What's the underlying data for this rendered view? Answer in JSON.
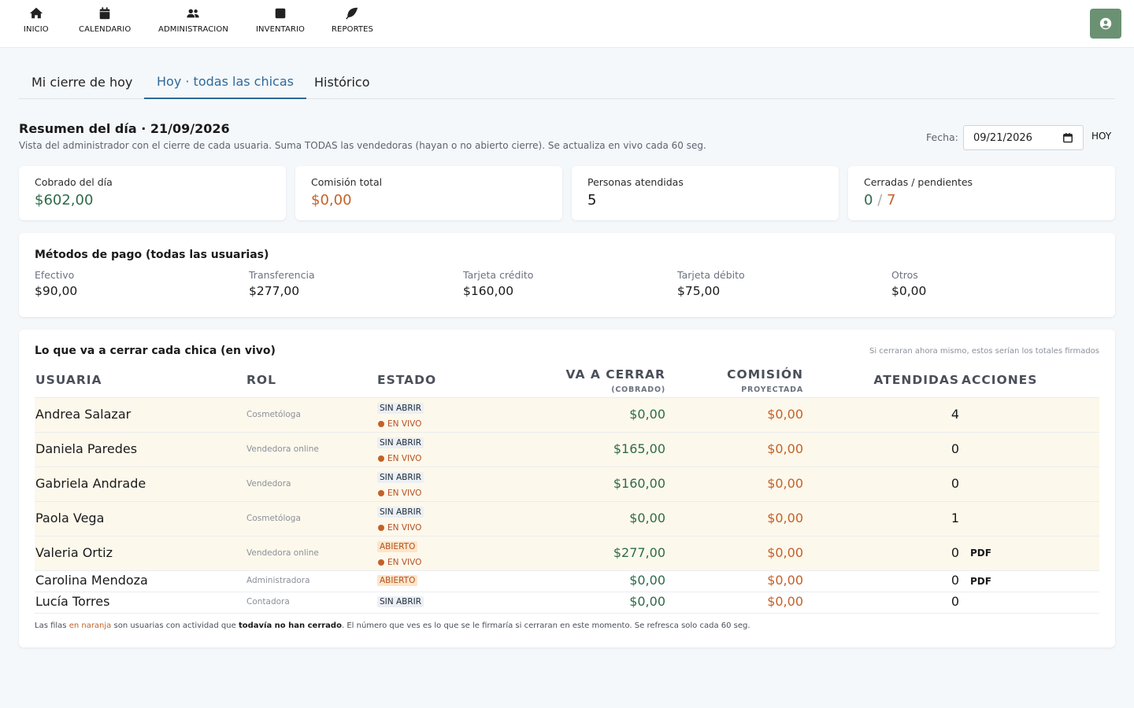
{
  "nav": {
    "items": [
      {
        "label": "INICIO",
        "icon": "home-icon"
      },
      {
        "label": "CALENDARIO",
        "icon": "calendar-icon"
      },
      {
        "label": "ADMINISTRACION",
        "icon": "users-icon"
      },
      {
        "label": "INVENTARIO",
        "icon": "box-icon"
      },
      {
        "label": "REPORTES",
        "icon": "leaf-icon"
      }
    ],
    "user_icon": "user-circle-icon"
  },
  "tabs": [
    "Mi cierre de hoy",
    "Hoy · todas las chicas",
    "Histórico"
  ],
  "active_tab": "Hoy · todas las chicas",
  "summary": {
    "title": "Resumen del día · 21/09/2026",
    "subtitle": "Vista del administrador con el cierre de cada usuaria. Suma TODAS las vendedoras (hayan o no abierto cierre). Se actualiza en vivo cada 60 seg.",
    "fecha_label": "Fecha:",
    "fecha_value": "09/21/2026",
    "hoy_label": "HOY"
  },
  "stats": {
    "cobrado": {
      "label": "Cobrado del día",
      "value": "$602,00"
    },
    "comision": {
      "label": "Comisión total",
      "value": "$0,00"
    },
    "personas": {
      "label": "Personas atendidas",
      "value": "5"
    },
    "cerradas": {
      "label": "Cerradas / pendientes",
      "closed": "0",
      "sep": "/",
      "pending": "7"
    }
  },
  "payments": {
    "title": "Métodos de pago (todas las usuarias)",
    "items": [
      {
        "label": "Efectivo",
        "value": "$90,00"
      },
      {
        "label": "Transferencia",
        "value": "$277,00"
      },
      {
        "label": "Tarjeta crédito",
        "value": "$160,00"
      },
      {
        "label": "Tarjeta débito",
        "value": "$75,00"
      },
      {
        "label": "Otros",
        "value": "$0,00"
      }
    ]
  },
  "live": {
    "title": "Lo que va a cerrar cada chica (en vivo)",
    "hint": "Si cerraran ahora mismo, estos serían los totales firmados",
    "headers": {
      "usuaria": "USUARIA",
      "rol": "ROL",
      "estado": "ESTADO",
      "cerrar": "VA A CERRAR",
      "cerrar_sub": "(COBRADO)",
      "comision": "COMISIÓN",
      "comision_sub": "PROYECTADA",
      "atendidas": "ATENDIDAS",
      "acciones": "ACCIONES"
    },
    "envivo_label": "EN VIVO",
    "pdf_label": "PDF",
    "rows": [
      {
        "name": "Andrea Salazar",
        "rol": "Cosmetóloga",
        "estado": "SIN ABRIR",
        "cobrado": "$0,00",
        "comision": "$0,00",
        "atendidas": "4"
      },
      {
        "name": "Daniela Paredes",
        "rol": "Vendedora online",
        "estado": "SIN ABRIR",
        "cobrado": "$165,00",
        "comision": "$0,00",
        "atendidas": "0"
      },
      {
        "name": "Gabriela Andrade",
        "rol": "Vendedora",
        "estado": "SIN ABRIR",
        "cobrado": "$160,00",
        "comision": "$0,00",
        "atendidas": "0"
      },
      {
        "name": "Paola Vega",
        "rol": "Cosmetóloga",
        "estado": "SIN ABRIR",
        "cobrado": "$0,00",
        "comision": "$0,00",
        "atendidas": "1"
      },
      {
        "name": "Valeria Ortiz",
        "rol": "Vendedora online",
        "estado": "ABIERTO",
        "cobrado": "$277,00",
        "comision": "$0,00",
        "atendidas": "0"
      },
      {
        "name": "Carolina Mendoza",
        "rol": "Administradora",
        "estado": "ABIERTO",
        "cobrado": "$0,00",
        "comision": "$0,00",
        "atendidas": "0"
      },
      {
        "name": "Lucía Torres",
        "rol": "Contadora",
        "estado": "SIN ABRIR",
        "cobrado": "$0,00",
        "comision": "$0,00",
        "atendidas": "0"
      }
    ],
    "note": {
      "part1": "Las filas ",
      "highlight": "en naranja",
      "part2": " son usuarias con actividad que ",
      "bold": "todavía no han cerrado",
      "part3": ". El número que ves es lo que se le firmaría si cerraran en este momento. Se refresca solo cada 60 seg."
    }
  },
  "colors": {
    "accent": "#2e6a9a",
    "green": "#2f6b4a",
    "orange": "#c4612a",
    "live_row": "#fdf8ec",
    "user_button": "#6b9173"
  }
}
